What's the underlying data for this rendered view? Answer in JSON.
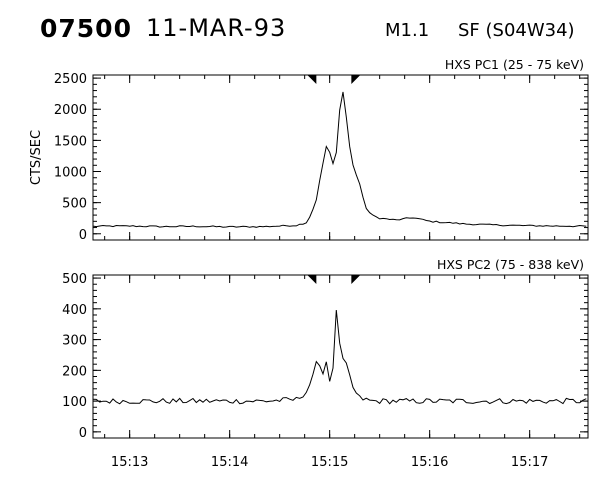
{
  "header": {
    "id": "07500",
    "date": "11-MAR-93",
    "goes_class": "M1.1",
    "location": "SF (S04W34)"
  },
  "chart_data": [
    {
      "type": "line",
      "title": "HXS PC1 (25 - 75 keV)",
      "xlabel": "",
      "ylabel": "CTS/SEC",
      "xlim": [
        "15:12:38",
        "15:17:35"
      ],
      "ylim": [
        -100,
        2550
      ],
      "yticks": [
        0,
        500,
        1000,
        1500,
        2000,
        2500
      ],
      "xticks": [
        "15:13",
        "15:14",
        "15:15",
        "15:16",
        "15:17"
      ],
      "markers": [
        "15:14:52",
        "15:15:13"
      ],
      "series": [
        {
          "points": [
            [
              "15:12:38",
              120
            ],
            [
              "15:13:00",
              125
            ],
            [
              "15:13:20",
              115
            ],
            [
              "15:13:40",
              120
            ],
            [
              "15:14:00",
              110
            ],
            [
              "15:14:20",
              115
            ],
            [
              "15:14:40",
              135
            ],
            [
              "15:14:46",
              180
            ],
            [
              "15:14:49",
              320
            ],
            [
              "15:14:52",
              550
            ],
            [
              "15:14:55",
              1000
            ],
            [
              "15:14:58",
              1400
            ],
            [
              "15:15:01",
              1250
            ],
            [
              "15:15:03",
              1000
            ],
            [
              "15:15:05",
              1600
            ],
            [
              "15:15:07",
              2400
            ],
            [
              "15:15:09",
              2150
            ],
            [
              "15:15:11",
              1600
            ],
            [
              "15:15:13",
              1200
            ],
            [
              "15:15:15",
              1000
            ],
            [
              "15:15:17",
              900
            ],
            [
              "15:15:19",
              700
            ],
            [
              "15:15:21",
              450
            ],
            [
              "15:15:25",
              300
            ],
            [
              "15:15:30",
              250
            ],
            [
              "15:15:40",
              220
            ],
            [
              "15:15:50",
              260
            ],
            [
              "15:16:00",
              200
            ],
            [
              "15:16:20",
              160
            ],
            [
              "15:16:40",
              140
            ],
            [
              "15:17:00",
              130
            ],
            [
              "15:17:20",
              125
            ],
            [
              "15:17:35",
              120
            ]
          ],
          "noise": 12
        }
      ]
    },
    {
      "type": "line",
      "title": "HXS PC2 (75 - 838 keV)",
      "xlabel": "",
      "ylabel": "",
      "xlim": [
        "15:12:38",
        "15:17:35"
      ],
      "ylim": [
        -20,
        510
      ],
      "yticks": [
        0,
        100,
        200,
        300,
        400,
        500
      ],
      "xticks": [
        "15:13",
        "15:14",
        "15:15",
        "15:16",
        "15:17"
      ],
      "markers": [
        "15:14:52",
        "15:15:13"
      ],
      "series": [
        {
          "points": [
            [
              "15:12:38",
              100
            ],
            [
              "15:13:00",
              100
            ],
            [
              "15:13:30",
              100
            ],
            [
              "15:14:00",
              100
            ],
            [
              "15:14:20",
              100
            ],
            [
              "15:14:40",
              105
            ],
            [
              "15:14:46",
              130
            ],
            [
              "15:14:50",
              180
            ],
            [
              "15:14:53",
              240
            ],
            [
              "15:14:56",
              190
            ],
            [
              "15:14:58",
              230
            ],
            [
              "15:15:00",
              170
            ],
            [
              "15:15:02",
              200
            ],
            [
              "15:15:04",
              400
            ],
            [
              "15:15:05",
              490
            ],
            [
              "15:15:06",
              280
            ],
            [
              "15:15:07",
              240
            ],
            [
              "15:15:09",
              230
            ],
            [
              "15:15:11",
              200
            ],
            [
              "15:15:13",
              160
            ],
            [
              "15:15:15",
              130
            ],
            [
              "15:15:18",
              110
            ],
            [
              "15:15:25",
              100
            ],
            [
              "15:16:00",
              100
            ],
            [
              "15:16:30",
              100
            ],
            [
              "15:17:00",
              100
            ],
            [
              "15:17:35",
              100
            ]
          ],
          "noise": 9
        }
      ]
    }
  ]
}
